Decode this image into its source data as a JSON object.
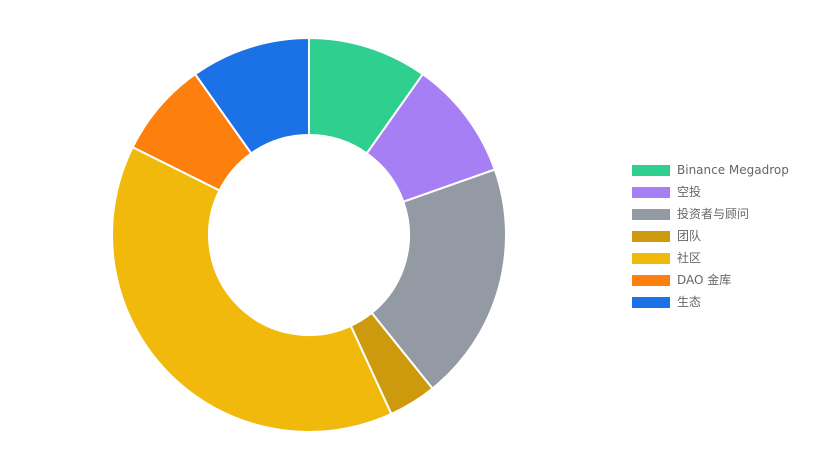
{
  "chart_data": {
    "type": "pie",
    "variant": "donut",
    "legend_position": "right",
    "categories": [
      "Binance Megadrop",
      "空投",
      "投资者与顾问",
      "团队",
      "社区",
      "DAO 金库",
      "生态"
    ],
    "values": [
      10,
      10,
      20,
      4,
      40,
      8,
      10
    ],
    "colors": [
      "#2fd08f",
      "#a77ff5",
      "#939aa3",
      "#cd9a0e",
      "#f0b90b",
      "#fd7f0d",
      "#1b72e6"
    ]
  }
}
